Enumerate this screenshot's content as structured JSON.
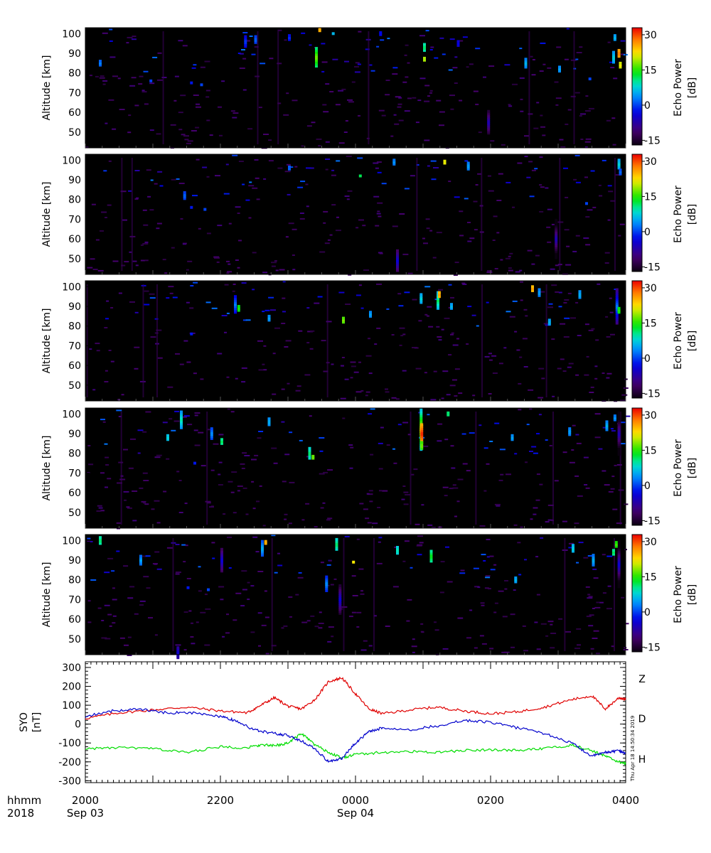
{
  "chart_data": [
    {
      "type": "heatmap",
      "panel": 1,
      "ylabel": "Altitude [km]",
      "yticks": [
        50,
        60,
        70,
        80,
        90,
        100
      ],
      "ylim": [
        42,
        103
      ],
      "colorbar_label_line1": "Echo Power",
      "colorbar_label_line2": "[dB]",
      "colorbar_ticks": [
        30,
        15,
        0,
        -15
      ],
      "colorbar_range": [
        -17,
        33
      ],
      "features": [
        {
          "t": 20.2,
          "alt": 85,
          "len": 3,
          "p": 3
        },
        {
          "t": 20.95,
          "alt": 76,
          "len": 1,
          "p": 0
        },
        {
          "t": 21.55,
          "alt": 75,
          "len": 1,
          "p": -2
        },
        {
          "t": 21.7,
          "alt": 74,
          "len": 1,
          "p": 0
        },
        {
          "t": 22.35,
          "alt": 96,
          "len": 6,
          "p": 0
        },
        {
          "t": 22.5,
          "alt": 97,
          "len": 4,
          "p": 2
        },
        {
          "t": 23.0,
          "alt": 98,
          "len": 3,
          "p": -1
        },
        {
          "t": 23.4,
          "alt": 88,
          "len": 10,
          "p": 18
        },
        {
          "t": 23.45,
          "alt": 102,
          "len": 2,
          "p": 26
        },
        {
          "t": 23.65,
          "alt": 100,
          "len": 1,
          "p": 6
        },
        {
          "t": 24.35,
          "alt": 100,
          "len": 2,
          "p": -2
        },
        {
          "t": 25.0,
          "alt": 93,
          "len": 4,
          "p": 12
        },
        {
          "t": 25.0,
          "alt": 87,
          "len": 2,
          "p": 20
        },
        {
          "t": 25.5,
          "alt": 95,
          "len": 3,
          "p": -3
        },
        {
          "t": 25.95,
          "alt": 55,
          "len": 12,
          "p": -6
        },
        {
          "t": 26.5,
          "alt": 85,
          "len": 5,
          "p": 6
        },
        {
          "t": 27.0,
          "alt": 82,
          "len": 3,
          "p": 5
        },
        {
          "t": 27.45,
          "alt": 77,
          "len": 1,
          "p": 0
        },
        {
          "t": 27.8,
          "alt": 88,
          "len": 6,
          "p": 8
        },
        {
          "t": 27.82,
          "alt": 98,
          "len": 3,
          "p": 6
        },
        {
          "t": 27.88,
          "alt": 90,
          "len": 4,
          "p": 28
        },
        {
          "t": 27.9,
          "alt": 84,
          "len": 3,
          "p": 22
        }
      ]
    },
    {
      "type": "heatmap",
      "panel": 2,
      "ylabel": "Altitude [km]",
      "yticks": [
        50,
        60,
        70,
        80,
        90,
        100
      ],
      "ylim": [
        42,
        103
      ],
      "colorbar_label_line1": "Echo Power",
      "colorbar_label_line2": "[dB]",
      "colorbar_ticks": [
        30,
        15,
        0,
        -15
      ],
      "colorbar_range": [
        -17,
        33
      ],
      "features": [
        {
          "t": 21.45,
          "alt": 82,
          "len": 4,
          "p": 2
        },
        {
          "t": 21.55,
          "alt": 76,
          "len": 1,
          "p": -2
        },
        {
          "t": 21.75,
          "alt": 75,
          "len": 1,
          "p": 0
        },
        {
          "t": 23.0,
          "alt": 96,
          "len": 2,
          "p": 2
        },
        {
          "t": 24.05,
          "alt": 92,
          "len": 1,
          "p": 12
        },
        {
          "t": 24.55,
          "alt": 99,
          "len": 3,
          "p": 4
        },
        {
          "t": 24.6,
          "alt": 49,
          "len": 11,
          "p": -4
        },
        {
          "t": 25.3,
          "alt": 99,
          "len": 2,
          "p": 22
        },
        {
          "t": 25.65,
          "alt": 97,
          "len": 4,
          "p": 5
        },
        {
          "t": 26.95,
          "alt": 60,
          "len": 20,
          "p": -6
        },
        {
          "t": 27.4,
          "alt": 78,
          "len": 1,
          "p": 0
        },
        {
          "t": 27.88,
          "alt": 98,
          "len": 5,
          "p": 8
        },
        {
          "t": 27.9,
          "alt": 94,
          "len": 3,
          "p": 2
        }
      ]
    },
    {
      "type": "heatmap",
      "panel": 3,
      "ylabel": "Altitude [km]",
      "yticks": [
        50,
        60,
        70,
        80,
        90,
        100
      ],
      "ylim": [
        42,
        103
      ],
      "colorbar_label_line1": "Echo Power",
      "colorbar_label_line2": "[dB]",
      "colorbar_ticks": [
        30,
        15,
        0,
        -15
      ],
      "colorbar_range": [
        -17,
        33
      ],
      "features": [
        {
          "t": 21.55,
          "alt": 76,
          "len": 1,
          "p": -2
        },
        {
          "t": 22.2,
          "alt": 91,
          "len": 9,
          "p": 3
        },
        {
          "t": 22.25,
          "alt": 89,
          "len": 3,
          "p": 15
        },
        {
          "t": 22.7,
          "alt": 84,
          "len": 3,
          "p": 5
        },
        {
          "t": 23.8,
          "alt": 83,
          "len": 3,
          "p": 18
        },
        {
          "t": 24.2,
          "alt": 86,
          "len": 3,
          "p": 5
        },
        {
          "t": 24.95,
          "alt": 94,
          "len": 5,
          "p": 8
        },
        {
          "t": 25.2,
          "alt": 93,
          "len": 9,
          "p": 12
        },
        {
          "t": 25.22,
          "alt": 96,
          "len": 3,
          "p": 26
        },
        {
          "t": 25.4,
          "alt": 90,
          "len": 3,
          "p": 6
        },
        {
          "t": 26.6,
          "alt": 99,
          "len": 3,
          "p": 26
        },
        {
          "t": 26.7,
          "alt": 97,
          "len": 4,
          "p": 5
        },
        {
          "t": 26.85,
          "alt": 82,
          "len": 3,
          "p": 6
        },
        {
          "t": 27.3,
          "alt": 96,
          "len": 4,
          "p": 6
        },
        {
          "t": 27.85,
          "alt": 90,
          "len": 18,
          "p": 3
        },
        {
          "t": 27.88,
          "alt": 88,
          "len": 3,
          "p": 15
        }
      ]
    },
    {
      "type": "heatmap",
      "panel": 4,
      "ylabel": "Altitude [km]",
      "yticks": [
        50,
        60,
        70,
        80,
        90,
        100
      ],
      "ylim": [
        42,
        103
      ],
      "colorbar_label_line1": "Echo Power",
      "colorbar_label_line2": "[dB]",
      "colorbar_ticks": [
        30,
        15,
        0,
        -15
      ],
      "colorbar_range": [
        -17,
        33
      ],
      "features": [
        {
          "t": 21.2,
          "alt": 88,
          "len": 3,
          "p": 8
        },
        {
          "t": 21.4,
          "alt": 97,
          "len": 9,
          "p": 10
        },
        {
          "t": 21.6,
          "alt": 75,
          "len": 1,
          "p": -2
        },
        {
          "t": 21.85,
          "alt": 90,
          "len": 6,
          "p": 4
        },
        {
          "t": 22.0,
          "alt": 86,
          "len": 3,
          "p": 12
        },
        {
          "t": 22.7,
          "alt": 96,
          "len": 4,
          "p": 6
        },
        {
          "t": 23.3,
          "alt": 80,
          "len": 6,
          "p": 12
        },
        {
          "t": 23.35,
          "alt": 78,
          "len": 2,
          "p": 18
        },
        {
          "t": 24.95,
          "alt": 92,
          "len": 21,
          "p": 22
        },
        {
          "t": 24.96,
          "alt": 90,
          "len": 10,
          "p": 32
        },
        {
          "t": 24.96,
          "alt": 84,
          "len": 4,
          "p": 18
        },
        {
          "t": 25.35,
          "alt": 100,
          "len": 2,
          "p": 12
        },
        {
          "t": 26.3,
          "alt": 88,
          "len": 3,
          "p": 5
        },
        {
          "t": 27.15,
          "alt": 91,
          "len": 4,
          "p": 5
        },
        {
          "t": 27.7,
          "alt": 94,
          "len": 5,
          "p": 6
        },
        {
          "t": 27.82,
          "alt": 98,
          "len": 3,
          "p": 4
        },
        {
          "t": 27.88,
          "alt": 90,
          "len": 22,
          "p": -6
        }
      ]
    },
    {
      "type": "heatmap",
      "panel": 5,
      "ylabel": "Altitude [km]",
      "yticks": [
        50,
        60,
        70,
        80,
        90,
        100
      ],
      "ylim": [
        42,
        103
      ],
      "colorbar_label_line1": "Echo Power",
      "colorbar_label_line2": "[dB]",
      "colorbar_ticks": [
        30,
        15,
        0,
        -15
      ],
      "colorbar_range": [
        -17,
        33
      ],
      "features": [
        {
          "t": 20.2,
          "alt": 100,
          "len": 4,
          "p": 12
        },
        {
          "t": 20.8,
          "alt": 90,
          "len": 5,
          "p": 5
        },
        {
          "t": 21.35,
          "alt": 43,
          "len": 6,
          "p": -4
        },
        {
          "t": 21.5,
          "alt": 76,
          "len": 1,
          "p": -2
        },
        {
          "t": 21.8,
          "alt": 75,
          "len": 1,
          "p": 0
        },
        {
          "t": 22.0,
          "alt": 90,
          "len": 12,
          "p": -4
        },
        {
          "t": 22.6,
          "alt": 96,
          "len": 8,
          "p": 6
        },
        {
          "t": 22.65,
          "alt": 99,
          "len": 2,
          "p": 26
        },
        {
          "t": 23.55,
          "alt": 78,
          "len": 8,
          "p": 4
        },
        {
          "t": 23.7,
          "alt": 98,
          "len": 6,
          "p": 12
        },
        {
          "t": 23.75,
          "alt": 70,
          "len": 15,
          "p": -4
        },
        {
          "t": 23.95,
          "alt": 89,
          "len": 1,
          "p": 22
        },
        {
          "t": 24.6,
          "alt": 95,
          "len": 4,
          "p": 10
        },
        {
          "t": 25.1,
          "alt": 92,
          "len": 6,
          "p": 14
        },
        {
          "t": 26.35,
          "alt": 80,
          "len": 3,
          "p": 6
        },
        {
          "t": 27.2,
          "alt": 96,
          "len": 4,
          "p": 8
        },
        {
          "t": 27.5,
          "alt": 90,
          "len": 6,
          "p": 6
        },
        {
          "t": 27.8,
          "alt": 94,
          "len": 3,
          "p": 12
        },
        {
          "t": 27.88,
          "alt": 88,
          "len": 24,
          "p": -4
        },
        {
          "t": 27.84,
          "alt": 98,
          "len": 3,
          "p": 16
        }
      ]
    },
    {
      "type": "line",
      "panel": 6,
      "ylabel_line1": "SYO",
      "ylabel_line2": "[nT]",
      "ylim": [
        -310,
        330
      ],
      "yticks": [
        300,
        200,
        100,
        0,
        -100,
        -200,
        -300
      ],
      "stamp": "Thu Apr 18 14:50:34 2019",
      "series": [
        {
          "name": "Z",
          "color": "#e00000",
          "points": [
            [
              20.0,
              30
            ],
            [
              20.5,
              60
            ],
            [
              21.0,
              75
            ],
            [
              21.5,
              90
            ],
            [
              22.0,
              70
            ],
            [
              22.4,
              60
            ],
            [
              22.6,
              100
            ],
            [
              22.8,
              140
            ],
            [
              23.0,
              95
            ],
            [
              23.2,
              80
            ],
            [
              23.4,
              130
            ],
            [
              23.6,
              225
            ],
            [
              23.8,
              245
            ],
            [
              24.0,
              160
            ],
            [
              24.2,
              80
            ],
            [
              24.4,
              55
            ],
            [
              24.8,
              75
            ],
            [
              25.2,
              90
            ],
            [
              25.6,
              70
            ],
            [
              26.0,
              55
            ],
            [
              26.4,
              65
            ],
            [
              26.8,
              90
            ],
            [
              27.2,
              130
            ],
            [
              27.5,
              150
            ],
            [
              27.7,
              80
            ],
            [
              27.9,
              140
            ],
            [
              28.0,
              130
            ]
          ]
        },
        {
          "name": "D",
          "color": "#00dd00",
          "points": [
            [
              20.0,
              -130
            ],
            [
              20.5,
              -125
            ],
            [
              21.0,
              -130
            ],
            [
              21.5,
              -150
            ],
            [
              22.0,
              -120
            ],
            [
              22.4,
              -125
            ],
            [
              22.6,
              -110
            ],
            [
              22.8,
              -115
            ],
            [
              23.0,
              -100
            ],
            [
              23.2,
              -50
            ],
            [
              23.4,
              -110
            ],
            [
              23.6,
              -150
            ],
            [
              23.8,
              -180
            ],
            [
              24.0,
              -160
            ],
            [
              24.4,
              -150
            ],
            [
              24.8,
              -145
            ],
            [
              25.2,
              -150
            ],
            [
              25.6,
              -140
            ],
            [
              26.0,
              -135
            ],
            [
              26.4,
              -140
            ],
            [
              26.8,
              -130
            ],
            [
              27.2,
              -110
            ],
            [
              27.5,
              -140
            ],
            [
              27.7,
              -170
            ],
            [
              27.9,
              -200
            ],
            [
              28.0,
              -210
            ]
          ]
        },
        {
          "name": "H",
          "color": "#0000cc",
          "points": [
            [
              20.0,
              40
            ],
            [
              20.4,
              70
            ],
            [
              20.8,
              80
            ],
            [
              21.2,
              60
            ],
            [
              21.6,
              60
            ],
            [
              22.0,
              40
            ],
            [
              22.2,
              20
            ],
            [
              22.5,
              -30
            ],
            [
              22.8,
              -50
            ],
            [
              23.0,
              -60
            ],
            [
              23.2,
              -90
            ],
            [
              23.4,
              -130
            ],
            [
              23.6,
              -200
            ],
            [
              23.8,
              -180
            ],
            [
              24.0,
              -100
            ],
            [
              24.2,
              -40
            ],
            [
              24.4,
              -20
            ],
            [
              24.8,
              -30
            ],
            [
              25.2,
              -10
            ],
            [
              25.6,
              20
            ],
            [
              26.0,
              10
            ],
            [
              26.4,
              -20
            ],
            [
              26.8,
              -50
            ],
            [
              27.2,
              -100
            ],
            [
              27.5,
              -170
            ],
            [
              27.7,
              -150
            ],
            [
              27.9,
              -140
            ],
            [
              28.0,
              -155
            ]
          ]
        }
      ]
    }
  ],
  "xaxis": {
    "row1_label": "hhmm",
    "row2_label": "2018",
    "ticks": [
      {
        "t": 20.0,
        "time": "2000",
        "date": "Sep 03"
      },
      {
        "t": 22.0,
        "time": "2200",
        "date": ""
      },
      {
        "t": 24.0,
        "time": "0000",
        "date": "Sep 04"
      },
      {
        "t": 26.0,
        "time": "0200",
        "date": ""
      },
      {
        "t": 28.0,
        "time": "0400",
        "date": ""
      }
    ],
    "range": [
      20.0,
      28.0
    ]
  }
}
